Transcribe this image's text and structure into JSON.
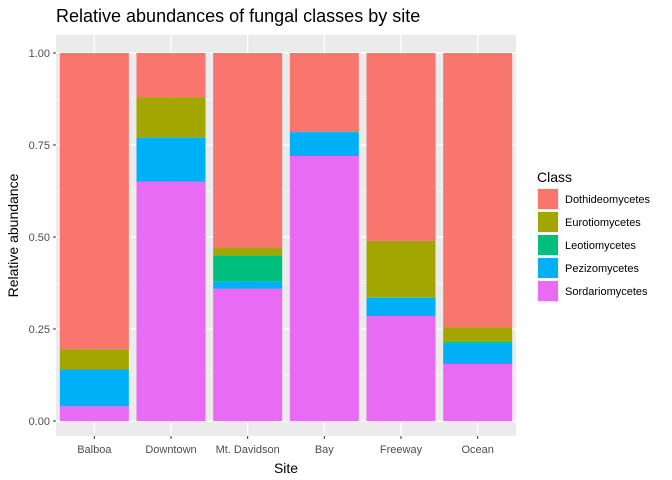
{
  "chart_data": {
    "type": "bar",
    "stacked": true,
    "title": "Relative abundances of fungal classes by site",
    "xlabel": "Site",
    "ylabel": "Relative abundance",
    "ylim": [
      0,
      1
    ],
    "yticks": [
      "0.00",
      "0.25",
      "0.50",
      "0.75",
      "1.00"
    ],
    "grid": true,
    "legend_position": "right",
    "legend_title": "Class",
    "categories": [
      "Balboa",
      "Downtown",
      "Mt. Davidson",
      "Bay",
      "Freeway",
      "Ocean"
    ],
    "series": [
      {
        "name": "Dothideomycetes",
        "color": "#F8766D",
        "values": [
          0.805,
          0.12,
          0.53,
          0.215,
          0.51,
          0.745
        ]
      },
      {
        "name": "Eurotiomycetes",
        "color": "#A3A500",
        "values": [
          0.055,
          0.11,
          0.02,
          0.0,
          0.155,
          0.04
        ]
      },
      {
        "name": "Leotiomycetes",
        "color": "#00BF7D",
        "values": [
          0.0,
          0.0,
          0.07,
          0.0,
          0.0,
          0.005
        ]
      },
      {
        "name": "Pezizomycetes",
        "color": "#00B0F6",
        "values": [
          0.1,
          0.12,
          0.02,
          0.065,
          0.05,
          0.055
        ]
      },
      {
        "name": "Sordariomycetes",
        "color": "#E76BF3",
        "values": [
          0.04,
          0.65,
          0.36,
          0.72,
          0.285,
          0.155
        ]
      }
    ]
  }
}
